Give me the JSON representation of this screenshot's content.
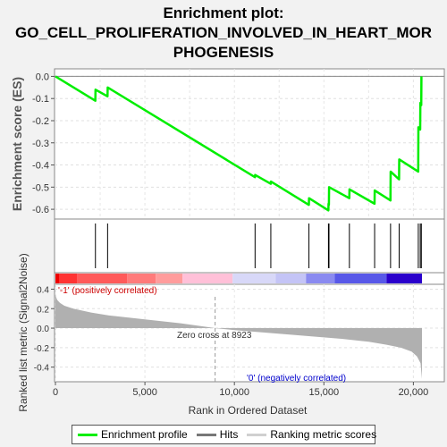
{
  "title_lines": [
    "Enrichment plot:",
    "GO_CELL_PROLIFERATION_INVOLVED_IN_HEART_MOR",
    "PHOGENESIS"
  ],
  "colors": {
    "enrichment_line": "#00ee00",
    "hits": "#000000",
    "metric_fill": "#b0b0b0",
    "pos_label": "#cc0000",
    "neg_label": "#0000cc"
  },
  "chart_data": [
    {
      "type": "line",
      "name": "enrichment-profile",
      "ylabel": "Enrichment score (ES)",
      "xlim": [
        0,
        20500
      ],
      "ylim": [
        -0.64,
        0.03
      ],
      "yticks": [
        0.0,
        -0.1,
        -0.2,
        -0.3,
        -0.4,
        -0.5,
        -0.6
      ],
      "ytick_labels": [
        "0.0",
        "-0.1",
        "-0.2",
        "-0.3",
        "-0.4",
        "-0.5",
        "-0.6"
      ],
      "grid": true,
      "x": [
        0,
        2230,
        2240,
        2910,
        2920,
        11150,
        11160,
        12030,
        12040,
        14160,
        14170,
        15250,
        15260,
        15280,
        15290,
        16420,
        16430,
        17830,
        17840,
        18720,
        18730,
        19200,
        19210,
        20270,
        20280,
        20380,
        20390,
        20440,
        20450
      ],
      "y": [
        0.0,
        -0.11,
        -0.06,
        -0.09,
        -0.05,
        -0.455,
        -0.445,
        -0.485,
        -0.475,
        -0.58,
        -0.55,
        -0.605,
        -0.575,
        -0.58,
        -0.5,
        -0.55,
        -0.51,
        -0.575,
        -0.515,
        -0.56,
        -0.43,
        -0.465,
        -0.375,
        -0.43,
        -0.23,
        -0.24,
        -0.12,
        -0.13,
        0.0
      ]
    },
    {
      "type": "scatter",
      "name": "hits",
      "x": [
        2235,
        2915,
        11155,
        12035,
        14165,
        15255,
        15285,
        16425,
        17835,
        18725,
        19205,
        20275,
        20385,
        20445
      ]
    },
    {
      "type": "area",
      "name": "ranked-list-metric",
      "xlabel": "Rank in Ordered Dataset",
      "ylabel": "Ranked list metric (Signal2Noise)",
      "xlim": [
        0,
        20500
      ],
      "ylim": [
        -0.55,
        0.45
      ],
      "xticks": [
        0,
        5000,
        10000,
        15000,
        20000
      ],
      "xtick_labels": [
        "0",
        "5,000",
        "10,000",
        "15,000",
        "20,000"
      ],
      "yticks": [
        0.4,
        0.2,
        0.0,
        -0.2,
        -0.4
      ],
      "ytick_labels": [
        "0.4",
        "0.2",
        "0.0",
        "-0.2",
        "-0.4"
      ],
      "x": [
        0,
        30,
        100,
        250,
        500,
        1000,
        2000,
        3000,
        5000,
        7000,
        8923,
        10000,
        12000,
        14000,
        16000,
        17500,
        18500,
        19300,
        19900,
        20200,
        20400,
        20480
      ],
      "y": [
        0.36,
        0.32,
        0.29,
        0.26,
        0.23,
        0.2,
        0.16,
        0.13,
        0.09,
        0.05,
        0.0,
        -0.02,
        -0.05,
        -0.08,
        -0.11,
        -0.14,
        -0.17,
        -0.2,
        -0.24,
        -0.29,
        -0.36,
        -0.52
      ],
      "zero_cross": 8923,
      "annotations": {
        "zero_cross": "Zero cross at 8923",
        "positive": "'-1' (positively correlated)",
        "negative": "'0' (negatively correlated)"
      }
    }
  ],
  "colorbar": [
    {
      "x0": 0,
      "x1": 200,
      "color": "#ee0000"
    },
    {
      "x0": 200,
      "x1": 1200,
      "color": "#ff3333"
    },
    {
      "x0": 1200,
      "x1": 4000,
      "color": "#ff5a5a"
    },
    {
      "x0": 4000,
      "x1": 5600,
      "color": "#ff7b7b"
    },
    {
      "x0": 5600,
      "x1": 7100,
      "color": "#ff9c9c"
    },
    {
      "x0": 7100,
      "x1": 9900,
      "color": "#ffc0d8"
    },
    {
      "x0": 9900,
      "x1": 12300,
      "color": "#d8d8f8"
    },
    {
      "x0": 12300,
      "x1": 14000,
      "color": "#c4c4f6"
    },
    {
      "x0": 14000,
      "x1": 15600,
      "color": "#8a8af0"
    },
    {
      "x0": 15600,
      "x1": 18500,
      "color": "#5858e8"
    },
    {
      "x0": 18500,
      "x1": 20480,
      "color": "#2a00cc"
    }
  ],
  "legend": {
    "items": [
      {
        "label": "Enrichment profile",
        "color": "#00ee00"
      },
      {
        "label": "Hits",
        "color": "#777777"
      },
      {
        "label": "Ranking metric scores",
        "color": "#d0d0d0"
      }
    ]
  }
}
